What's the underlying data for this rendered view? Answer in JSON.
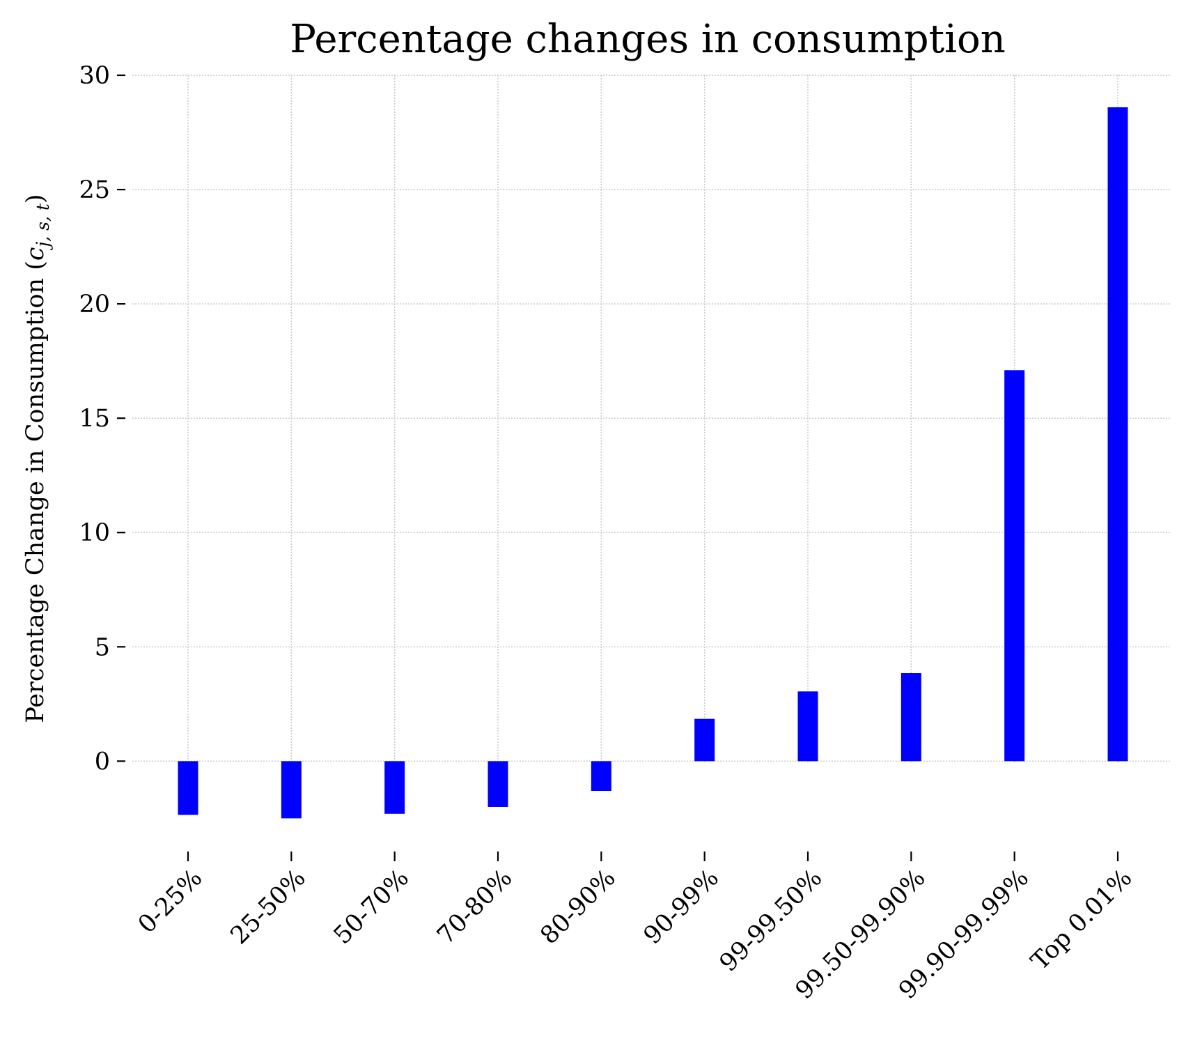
{
  "chart_data": {
    "type": "bar",
    "title": "Percentage changes in consumption",
    "xlabel": "",
    "ylabel": "Percentage Change in Consumption (",
    "ylabel_math": "c",
    "ylabel_math_sub": "j, s, t",
    "ylabel_close": ")",
    "categories": [
      "0-25%",
      "25-50%",
      "50-70%",
      "70-80%",
      "80-90%",
      "90-99%",
      "99-99.50%",
      "99.50-99.90%",
      "99.90-99.99%",
      "Top 0.01%"
    ],
    "values": [
      -2.35,
      -2.5,
      -2.3,
      -2.0,
      -1.3,
      1.85,
      3.05,
      3.85,
      17.1,
      28.6
    ],
    "ylim": [
      -4.5,
      30
    ],
    "yticks": [
      0,
      5,
      10,
      15,
      20,
      25,
      30
    ],
    "grid": true,
    "bar_color": "#0000ff"
  }
}
